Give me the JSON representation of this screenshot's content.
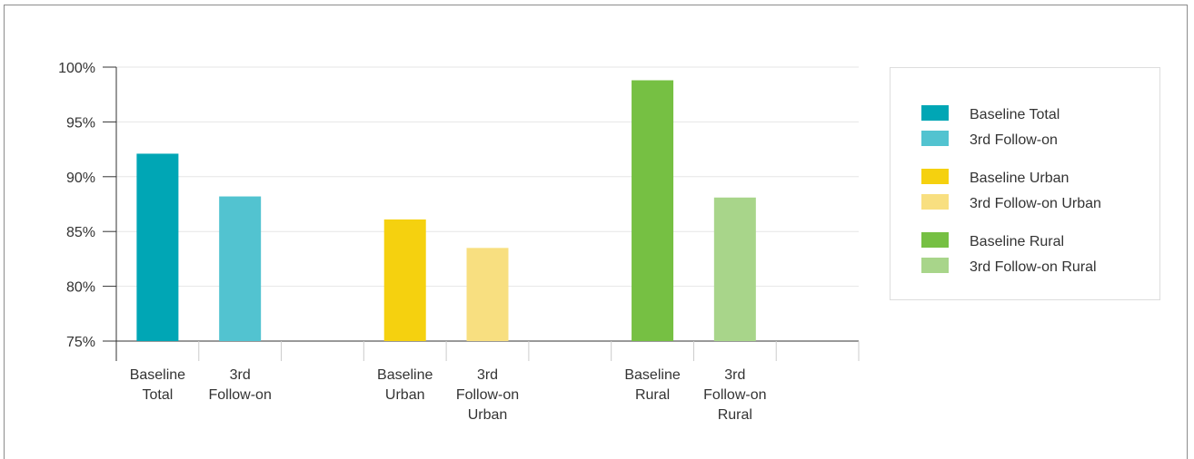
{
  "chart_data": {
    "type": "bar",
    "title": "",
    "xlabel": "",
    "ylabel": "",
    "ylim": [
      75,
      100
    ],
    "yticks": [
      "100%",
      "95%",
      "90%",
      "85%",
      "80%",
      "75%"
    ],
    "ytick_values": [
      100,
      95,
      90,
      85,
      80,
      75
    ],
    "grid": true,
    "legend_position": "right",
    "slots": 9,
    "categories": [
      {
        "lines": [
          "Baseline",
          "Total"
        ],
        "value": 92.1,
        "color": "#00a6b5",
        "slot": 0
      },
      {
        "lines": [
          "3rd",
          "Follow-on"
        ],
        "value": 88.2,
        "color": "#52c3d0",
        "slot": 1
      },
      {
        "lines": [
          "Baseline",
          "Urban"
        ],
        "value": 86.1,
        "color": "#f5d10f",
        "slot": 3
      },
      {
        "lines": [
          "3rd",
          "Follow-on",
          "Urban"
        ],
        "value": 83.5,
        "color": "#f8df80",
        "slot": 4
      },
      {
        "lines": [
          "Baseline",
          "Rural"
        ],
        "value": 98.8,
        "color": "#76c043",
        "slot": 6
      },
      {
        "lines": [
          "3rd",
          "Follow-on",
          "Rural"
        ],
        "value": 88.1,
        "color": "#a8d58a",
        "slot": 7
      }
    ],
    "legend": [
      {
        "label": "Baseline Total",
        "color": "#00a6b5",
        "group": 0
      },
      {
        "label": "3rd Follow-on",
        "color": "#52c3d0",
        "group": 0
      },
      {
        "label": "Baseline Urban",
        "color": "#f5d10f",
        "group": 1
      },
      {
        "label": "3rd Follow-on Urban",
        "color": "#f8df80",
        "group": 1
      },
      {
        "label": "Baseline Rural",
        "color": "#76c043",
        "group": 2
      },
      {
        "label": "3rd Follow-on Rural",
        "color": "#a8d58a",
        "group": 2
      }
    ]
  }
}
